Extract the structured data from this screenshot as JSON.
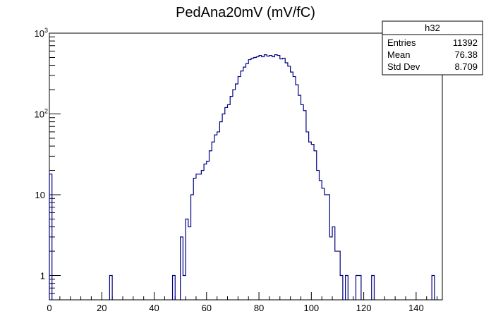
{
  "chart_data": {
    "type": "histogram",
    "title": "PedAna20mV (mV/fC)",
    "xlabel": "",
    "ylabel": "",
    "xlim": [
      0,
      150
    ],
    "ylim": [
      0.5,
      1000
    ],
    "yscale": "log",
    "bin_width": 1,
    "line_color": "#000080",
    "x_ticks": [
      "0",
      "20",
      "40",
      "60",
      "80",
      "100",
      "120",
      "140"
    ],
    "y_ticks": [
      {
        "label": "1",
        "value": 1
      },
      {
        "label": "10",
        "value": 10
      },
      {
        "label": "10",
        "sup": "2",
        "value": 100
      },
      {
        "label": "10",
        "sup": "3",
        "value": 1000
      }
    ],
    "bins": [
      [
        0,
        18
      ],
      [
        23,
        1
      ],
      [
        47,
        1
      ],
      [
        50,
        3
      ],
      [
        51,
        1
      ],
      [
        52,
        5
      ],
      [
        53,
        4
      ],
      [
        54,
        10
      ],
      [
        55,
        16
      ],
      [
        56,
        18
      ],
      [
        57,
        18
      ],
      [
        58,
        20
      ],
      [
        59,
        24
      ],
      [
        60,
        26
      ],
      [
        61,
        35
      ],
      [
        62,
        45
      ],
      [
        63,
        55
      ],
      [
        64,
        60
      ],
      [
        65,
        80
      ],
      [
        66,
        100
      ],
      [
        67,
        120
      ],
      [
        68,
        130
      ],
      [
        69,
        165
      ],
      [
        70,
        200
      ],
      [
        71,
        235
      ],
      [
        72,
        290
      ],
      [
        73,
        340
      ],
      [
        74,
        380
      ],
      [
        75,
        420
      ],
      [
        76,
        470
      ],
      [
        77,
        490
      ],
      [
        78,
        500
      ],
      [
        79,
        510
      ],
      [
        80,
        530
      ],
      [
        81,
        510
      ],
      [
        82,
        540
      ],
      [
        83,
        520
      ],
      [
        84,
        530
      ],
      [
        85,
        510
      ],
      [
        86,
        540
      ],
      [
        87,
        530
      ],
      [
        88,
        480
      ],
      [
        89,
        490
      ],
      [
        90,
        430
      ],
      [
        91,
        390
      ],
      [
        92,
        330
      ],
      [
        93,
        290
      ],
      [
        94,
        230
      ],
      [
        95,
        170
      ],
      [
        96,
        130
      ],
      [
        97,
        110
      ],
      [
        98,
        60
      ],
      [
        99,
        45
      ],
      [
        100,
        42
      ],
      [
        101,
        35
      ],
      [
        102,
        20
      ],
      [
        103,
        15
      ],
      [
        104,
        12
      ],
      [
        105,
        10
      ],
      [
        106,
        10
      ],
      [
        107,
        3
      ],
      [
        108,
        4
      ],
      [
        109,
        2
      ],
      [
        110,
        2
      ],
      [
        111,
        1
      ],
      [
        113,
        1
      ],
      [
        117,
        1
      ],
      [
        118,
        1
      ],
      [
        123,
        1
      ],
      [
        146,
        1
      ]
    ],
    "stats": {
      "name": "h32",
      "rows": [
        {
          "label": "Entries",
          "value": "11392"
        },
        {
          "label": "Mean",
          "value": "76.38"
        },
        {
          "label": "Std Dev",
          "value": "8.709"
        }
      ]
    }
  }
}
